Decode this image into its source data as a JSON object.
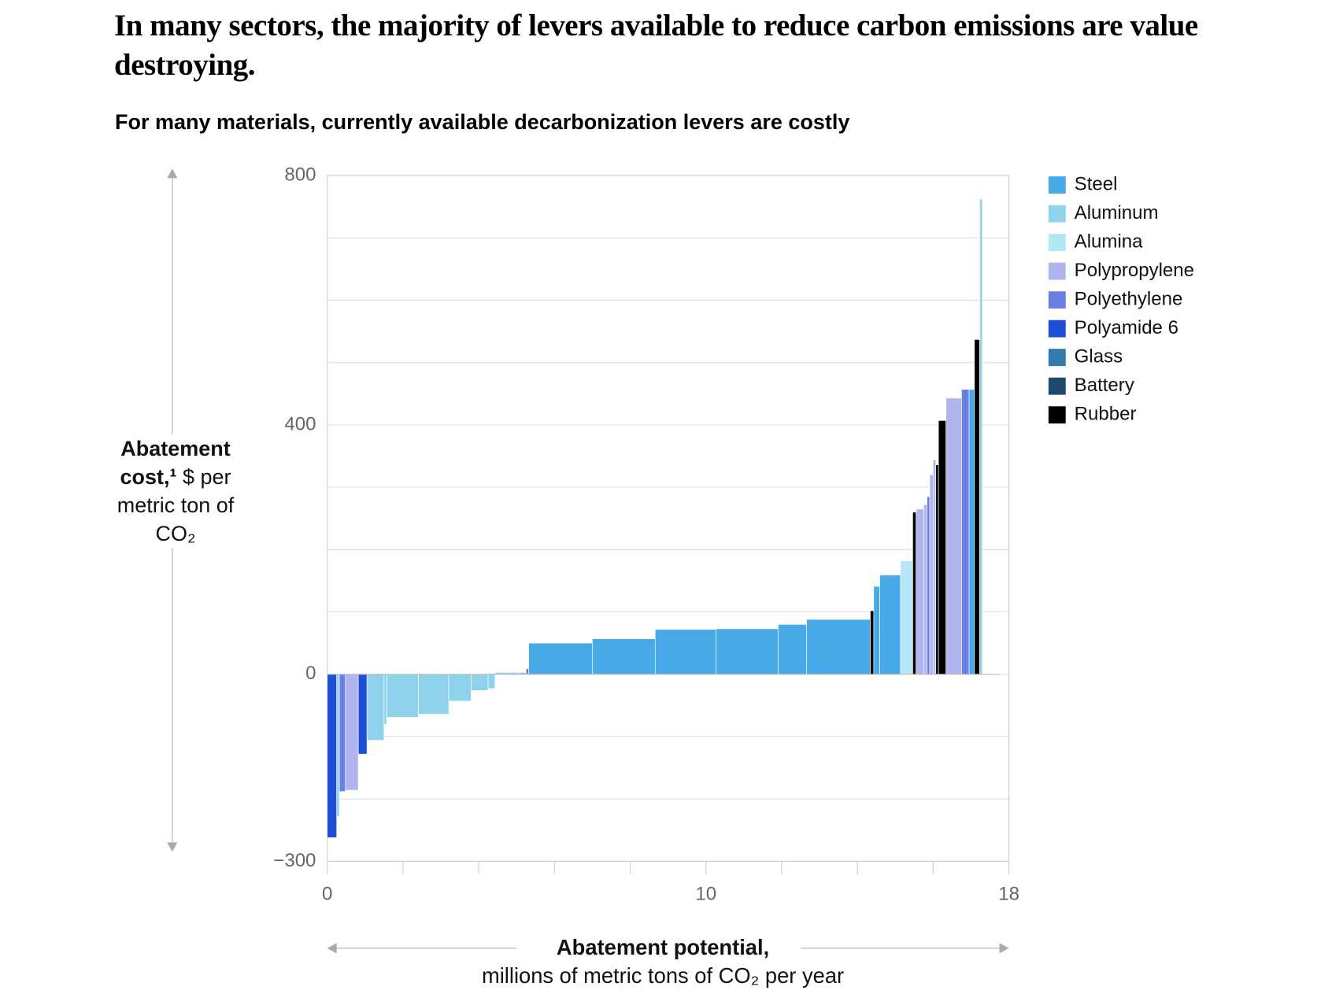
{
  "chart_data": {
    "type": "cost_curve",
    "title": "In many sectors, the majority of levers available to reduce carbon emissions are value destroying.",
    "subtitle": "For many materials, currently available decarbonization levers are costly",
    "ylabel_bold": "Abatement cost,¹",
    "ylabel": "$ per metric ton of CO₂",
    "xlabel_bold": "Abatement potential,",
    "xlabel": "millions of metric tons of CO₂ per year",
    "series": [
      {
        "name": "Steel",
        "color": "#48a9e8"
      },
      {
        "name": "Aluminum",
        "color": "#8fd2ec"
      },
      {
        "name": "Alumina",
        "color": "#b3e6f7"
      },
      {
        "name": "Polypropylene",
        "color": "#b1b5ee"
      },
      {
        "name": "Polyethylene",
        "color": "#6b7fe2"
      },
      {
        "name": "Polyamide 6",
        "color": "#1d4ed8"
      },
      {
        "name": "Glass",
        "color": "#2f7bab"
      },
      {
        "name": "Battery",
        "color": "#1f4a6e"
      },
      {
        "name": "Rubber",
        "color": "#000000"
      }
    ],
    "materials": [
      "Polyamide 6",
      "Aluminum",
      "Polyethylene",
      "Polypropylene",
      "Polyamide 6",
      "Aluminum",
      "Aluminum",
      "Aluminum",
      "Aluminum",
      "Aluminum",
      "Aluminum",
      "Aluminum",
      "Aluminum",
      "Polypropylene",
      "Polyethylene",
      "Steel",
      "Steel",
      "Steel",
      "Steel",
      "Steel",
      "Steel",
      "Rubber",
      "Steel",
      "Steel",
      "Alumina",
      "Rubber",
      "Polypropylene",
      "Polypropylene",
      "Polyethylene",
      "Polypropylene",
      "Polypropylene",
      "Rubber",
      "Rubber",
      "Polypropylene",
      "Polyethylene",
      "Steel",
      "Rubber",
      "Aluminum"
    ],
    "widths": [
      0.25,
      0.07,
      0.16,
      0.34,
      0.23,
      0.45,
      0.07,
      0.84,
      0.8,
      0.59,
      0.45,
      0.18,
      0.64,
      0.18,
      0.07,
      1.68,
      1.66,
      1.61,
      1.64,
      0.75,
      1.68,
      0.09,
      0.16,
      0.55,
      0.32,
      0.09,
      0.2,
      0.09,
      0.07,
      0.09,
      0.07,
      0.07,
      0.2,
      0.41,
      0.2,
      0.14,
      0.14,
      0.07
    ],
    "values": [
      -262,
      -228,
      -188,
      -186,
      -128,
      -106,
      -80,
      -69,
      -64,
      -43,
      -26,
      -23,
      3,
      3,
      9,
      50,
      57,
      72,
      73,
      80,
      88,
      102,
      141,
      159,
      182,
      260,
      265,
      272,
      285,
      320,
      344,
      336,
      407,
      443,
      457,
      457,
      537,
      762
    ],
    "xlim": [
      0,
      18
    ],
    "xticks": [
      0,
      10,
      18
    ],
    "xtick_marks": [
      0,
      2,
      4,
      6,
      8,
      10,
      12,
      14,
      16,
      18
    ],
    "ylim": [
      -300,
      800
    ],
    "yticks": [
      {
        "value": -300,
        "label": "−300"
      },
      0,
      400,
      800
    ],
    "ygrid": [
      -300,
      -200,
      -100,
      0,
      100,
      200,
      300,
      400,
      500,
      600,
      700,
      800
    ],
    "legend": "right"
  }
}
